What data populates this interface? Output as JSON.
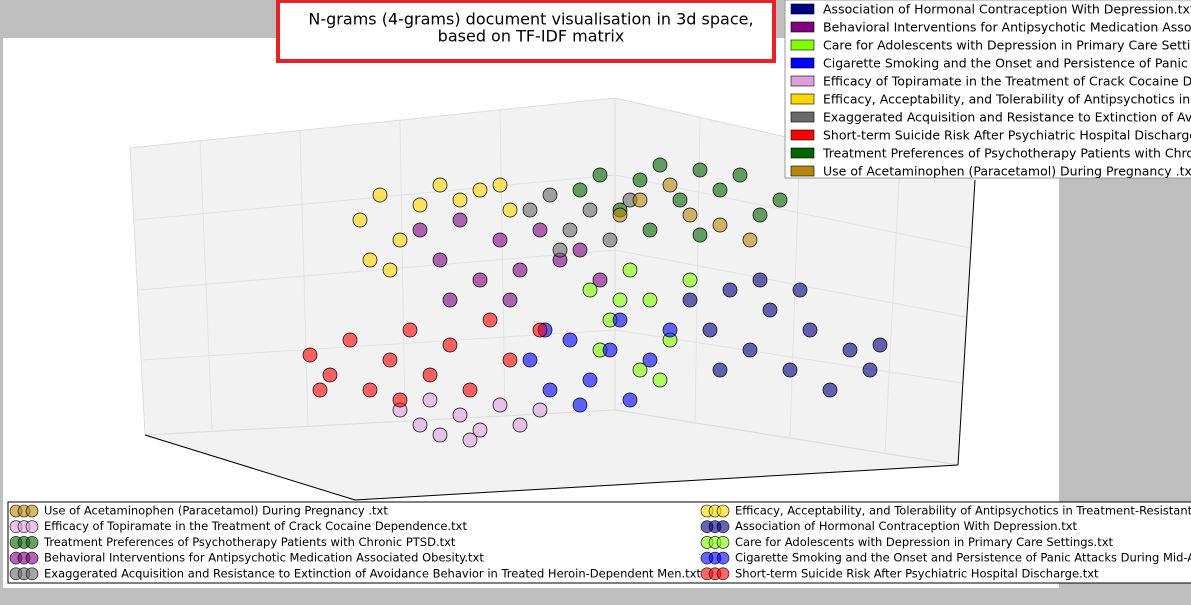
{
  "chart_data": {
    "type": "scatter",
    "title": [
      "N-grams (4-grams) document visualisation in 3d space,",
      "based on TF-IDF matrix"
    ],
    "xlim": [
      0,
      850
    ],
    "ylim": [
      0,
      385
    ],
    "series": [
      {
        "name": "Association of Hormonal Contraception With Depression.txt",
        "color": "#000080",
        "x": [
          560,
          580,
          600,
          620,
          640,
          660,
          680,
          700,
          720,
          740,
          590,
          630,
          670,
          750
        ],
        "values": [
          180,
          150,
          190,
          130,
          170,
          110,
          150,
          90,
          130,
          110,
          110,
          200,
          190,
          135
        ]
      },
      {
        "name": "Behavioral Interventions for Antipsychotic Medication Associated Obesity.txt",
        "color": "#800080",
        "x": [
          290,
          310,
          330,
          350,
          370,
          390,
          410,
          430,
          450,
          320,
          380,
          470
        ],
        "values": [
          250,
          220,
          260,
          200,
          240,
          210,
          250,
          220,
          230,
          180,
          180,
          200
        ]
      },
      {
        "name": "Care for Adolescents with Depression in Primary Care Settings.txt",
        "color": "#7fff00",
        "x": [
          460,
          480,
          500,
          520,
          540,
          560,
          510,
          470,
          530,
          490
        ],
        "values": [
          190,
          160,
          210,
          180,
          140,
          200,
          110,
          130,
          100,
          180
        ]
      },
      {
        "name": "Cigarette Smoking and the Onset and Persistence of Panic Attacks During Mid-Adu",
        "color": "#0000ff",
        "x": [
          400,
          420,
          440,
          460,
          480,
          500,
          520,
          540,
          450,
          490,
          415
        ],
        "values": [
          120,
          90,
          140,
          100,
          130,
          80,
          120,
          150,
          75,
          160,
          150
        ]
      },
      {
        "name": "Efficacy of Topiramate in the Treatment of Crack Cocaine Dependence.txt",
        "color": "#dda0dd",
        "x": [
          270,
          290,
          310,
          330,
          350,
          370,
          390,
          410,
          300,
          340
        ],
        "values": [
          70,
          55,
          45,
          65,
          50,
          75,
          55,
          70,
          80,
          40
        ]
      },
      {
        "name": "Efficacy, Acceptability, and Tolerability of Antipsychotics in Treatment-Resistant Sc",
        "color": "#ffd700",
        "x": [
          230,
          250,
          270,
          290,
          310,
          330,
          350,
          370,
          240,
          260,
          380
        ],
        "values": [
          260,
          285,
          240,
          275,
          295,
          280,
          290,
          295,
          220,
          210,
          270
        ]
      },
      {
        "name": "Exaggerated Acquisition and Resistance to Extinction of Avoidance Behavior in Treated Heroin-Dependent Men.txt",
        "color": "#696969",
        "x": [
          400,
          420,
          440,
          460,
          480,
          500,
          430
        ],
        "values": [
          270,
          285,
          250,
          270,
          240,
          280,
          230
        ]
      },
      {
        "name": "Short-term Suicide Risk After Psychiatric Hospital Discharge.txt",
        "color": "#ff0000",
        "x": [
          180,
          200,
          220,
          240,
          260,
          280,
          300,
          320,
          340,
          360,
          380,
          410,
          190,
          270
        ],
        "values": [
          125,
          105,
          140,
          90,
          120,
          150,
          105,
          135,
          90,
          160,
          120,
          150,
          90,
          80
        ]
      },
      {
        "name": "Treatment Preferences of Psychotherapy Patients with Chronic PTSD.txt",
        "color": "#006400",
        "x": [
          450,
          470,
          490,
          510,
          530,
          550,
          570,
          590,
          610,
          630,
          650,
          520,
          570
        ],
        "values": [
          290,
          305,
          270,
          300,
          315,
          280,
          310,
          290,
          305,
          265,
          280,
          250,
          245
        ]
      },
      {
        "name": "Use of Acetaminophen (Paracetamol) During Pregnancy .txt",
        "color": "#b8860b",
        "x": [
          510,
          560,
          590,
          620,
          490,
          540
        ],
        "values": [
          280,
          265,
          255,
          240,
          265,
          295
        ]
      }
    ]
  }
}
